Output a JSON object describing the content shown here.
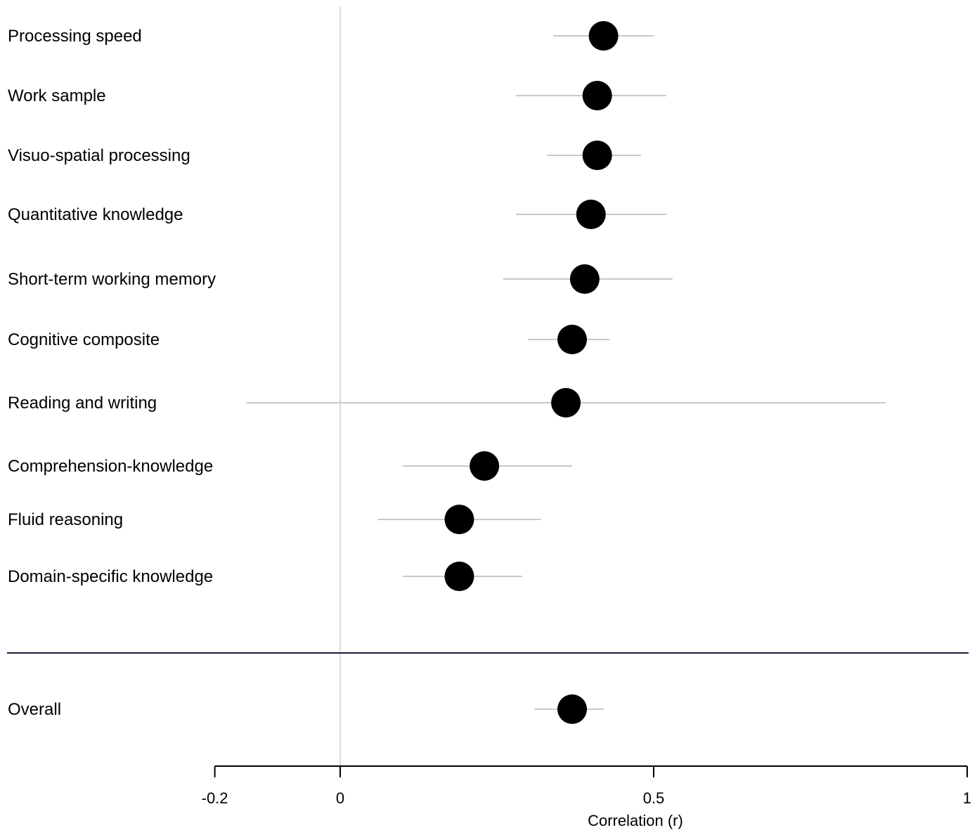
{
  "chart_data": {
    "type": "scatter",
    "subtype": "forest-plot",
    "title": "",
    "xlabel": "Correlation (r)",
    "ylabel": "",
    "xlim": [
      -0.2,
      1
    ],
    "xticks": [
      -0.2,
      0,
      0.5,
      1
    ],
    "xtick_labels": [
      "-0.2",
      "0",
      "0.5",
      "1"
    ],
    "reference_line": 0,
    "grid": false,
    "colors": {
      "point": "#000000",
      "ci": "#c8c8c8",
      "zero_line": "#d0d0d0",
      "separator": "#1a1f3a",
      "axis": "#000000"
    },
    "rows": [
      {
        "label": "Processing speed",
        "r": 0.42,
        "ci_low": 0.34,
        "ci_high": 0.5
      },
      {
        "label": "Work sample",
        "r": 0.41,
        "ci_low": 0.28,
        "ci_high": 0.52
      },
      {
        "label": "Visuo-spatial processing",
        "r": 0.41,
        "ci_low": 0.33,
        "ci_high": 0.48
      },
      {
        "label": "Quantitative knowledge",
        "r": 0.4,
        "ci_low": 0.28,
        "ci_high": 0.52
      },
      {
        "label": "Short-term working memory",
        "r": 0.39,
        "ci_low": 0.26,
        "ci_high": 0.53
      },
      {
        "label": "Cognitive composite",
        "r": 0.37,
        "ci_low": 0.3,
        "ci_high": 0.43
      },
      {
        "label": "Reading and writing",
        "r": 0.36,
        "ci_low": -0.15,
        "ci_high": 0.87
      },
      {
        "label": "Comprehension-knowledge",
        "r": 0.23,
        "ci_low": 0.1,
        "ci_high": 0.37
      },
      {
        "label": "Fluid reasoning",
        "r": 0.19,
        "ci_low": 0.06,
        "ci_high": 0.32
      },
      {
        "label": "Domain-specific knowledge",
        "r": 0.19,
        "ci_low": 0.1,
        "ci_high": 0.29
      }
    ],
    "overall": {
      "label": "Overall",
      "r": 0.37,
      "ci_low": 0.31,
      "ci_high": 0.42
    }
  }
}
